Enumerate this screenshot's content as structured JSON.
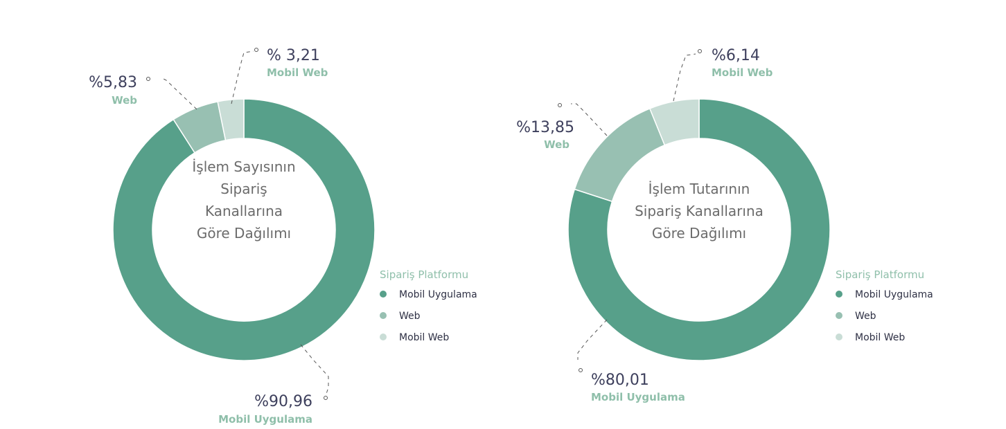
{
  "colors": {
    "Mobil Uygulama": "#57a08a",
    "Web": "#98c0b2",
    "Mobil Web": "#c9ddd6"
  },
  "chart_data": [
    {
      "type": "donut",
      "center_title": [
        "İşlem Sayısının",
        "Sipariş",
        "Kanallarına",
        "Göre Dağılımı"
      ],
      "legend_title": "Sipariş Platformu",
      "legend": [
        "Mobil Uygulama",
        "Web",
        "Mobil Web"
      ],
      "slices": [
        {
          "name": "Mobil Uygulama",
          "value": 90.96,
          "label": "%90,96"
        },
        {
          "name": "Web",
          "value": 5.83,
          "label": "%5,83"
        },
        {
          "name": "Mobil Web",
          "value": 3.21,
          "label": "% 3,21"
        }
      ]
    },
    {
      "type": "donut",
      "center_title": [
        "İşlem Tutarının",
        "Sipariş Kanallarına",
        "Göre Dağılımı"
      ],
      "legend_title": "Sipariş Platformu",
      "legend": [
        "Mobil Uygulama",
        "Web",
        "Mobil Web"
      ],
      "slices": [
        {
          "name": "Mobil Uygulama",
          "value": 80.01,
          "label": "%80,01"
        },
        {
          "name": "Web",
          "value": 13.85,
          "label": "%13,85"
        },
        {
          "name": "Mobil Web",
          "value": 6.14,
          "label": "%6,14"
        }
      ]
    }
  ]
}
